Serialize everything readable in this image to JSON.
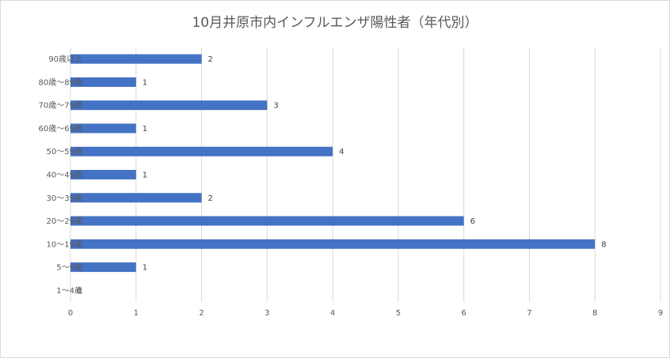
{
  "chart_data": {
    "type": "bar",
    "orientation": "horizontal",
    "title": "10月井原市内インフルエンザ陽性者（年代別）",
    "categories": [
      "90歳以上",
      "80歳～89歳",
      "70歳～79歳",
      "60歳～69歳",
      "50～59歳",
      "40～49歳",
      "30～39歳",
      "20～29歳",
      "10～19歳",
      "5～9歳",
      "1～4歳"
    ],
    "values": [
      2,
      1,
      3,
      1,
      4,
      1,
      2,
      6,
      8,
      1,
      0
    ],
    "xlim": [
      0,
      9
    ],
    "xticks": [
      "0",
      "1",
      "2",
      "3",
      "4",
      "5",
      "6",
      "7",
      "8",
      "9"
    ],
    "grid": "vertical",
    "legend": "none",
    "bar_color": "#4472c4"
  }
}
